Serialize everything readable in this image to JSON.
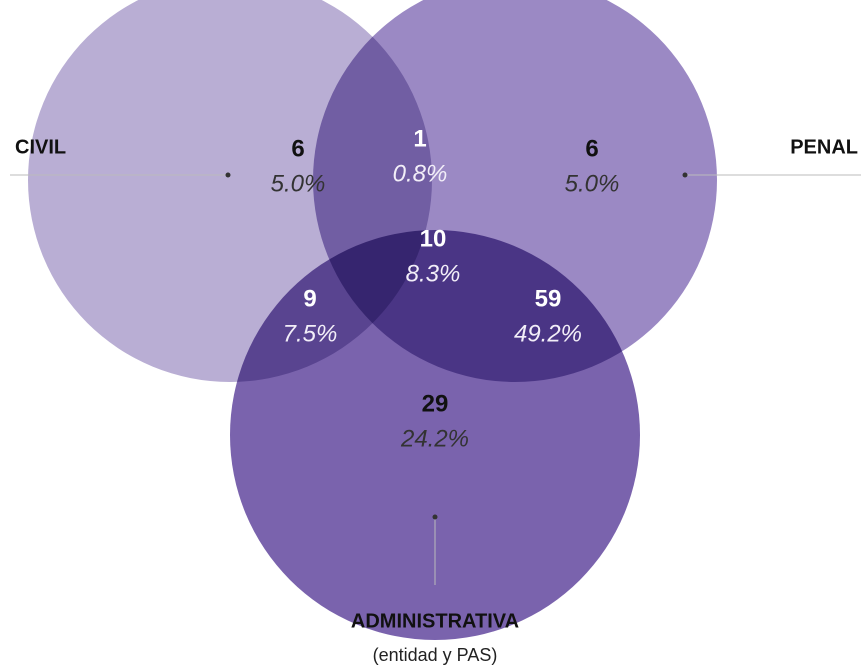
{
  "chart_data": {
    "type": "venn",
    "sets": [
      {
        "name": "CIVIL",
        "color": "#b9aed4"
      },
      {
        "name": "PENAL",
        "color": "#9b89c4"
      },
      {
        "name": "ADMINISTRATIVA",
        "subtitle": "(entidad y PAS)",
        "color": "#7a63ad"
      }
    ],
    "regions": [
      {
        "sets": [
          "CIVIL"
        ],
        "count": 6,
        "percent": 5.0,
        "percent_label": "5.0%"
      },
      {
        "sets": [
          "CIVIL",
          "PENAL"
        ],
        "count": 1,
        "percent": 0.8,
        "percent_label": "0.8%"
      },
      {
        "sets": [
          "PENAL"
        ],
        "count": 6,
        "percent": 5.0,
        "percent_label": "5.0%"
      },
      {
        "sets": [
          "CIVIL",
          "PENAL",
          "ADMINISTRATIVA"
        ],
        "count": 10,
        "percent": 8.3,
        "percent_label": "8.3%"
      },
      {
        "sets": [
          "CIVIL",
          "ADMINISTRATIVA"
        ],
        "count": 9,
        "percent": 7.5,
        "percent_label": "7.5%"
      },
      {
        "sets": [
          "PENAL",
          "ADMINISTRATIVA"
        ],
        "count": 59,
        "percent": 49.2,
        "percent_label": "49.2%"
      },
      {
        "sets": [
          "ADMINISTRATIVA"
        ],
        "count": 29,
        "percent": 24.2,
        "percent_label": "24.2%"
      }
    ]
  }
}
